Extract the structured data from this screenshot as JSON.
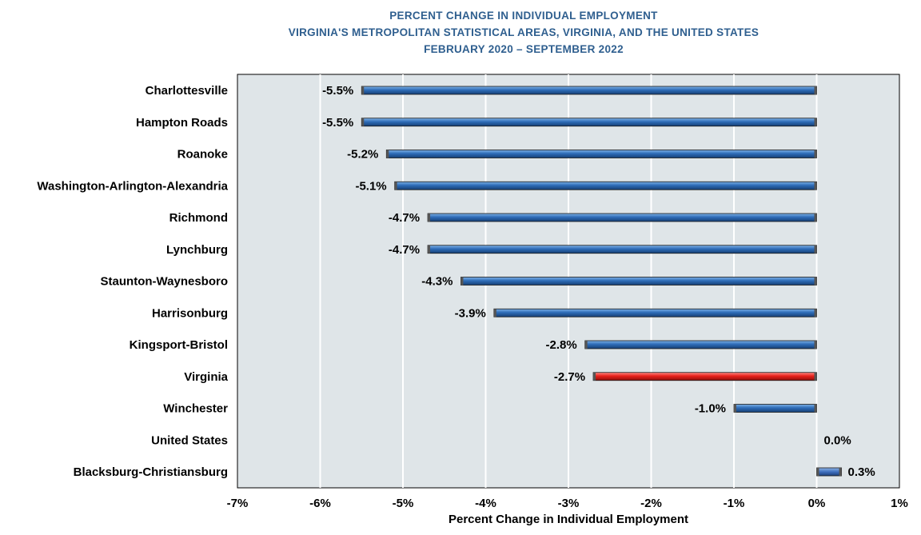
{
  "chart_data": {
    "type": "bar",
    "orientation": "horizontal",
    "title": [
      "PERCENT CHANGE IN INDIVIDUAL EMPLOYMENT",
      "VIRGINIA'S METROPOLITAN STATISTICAL AREAS, VIRGINIA, AND THE UNITED STATES",
      "FEBRUARY 2020 – SEPTEMBER 2022"
    ],
    "xlabel": "Percent Change in Individual Employment",
    "ylabel": "",
    "xlim": [
      -7,
      1
    ],
    "x_ticks": [
      -7,
      -6,
      -5,
      -4,
      -3,
      -2,
      -1,
      0,
      1
    ],
    "x_tick_labels": [
      "-7%",
      "-6%",
      "-5%",
      "-4%",
      "-3%",
      "-2%",
      "-1%",
      "0%",
      "1%"
    ],
    "grid": "vertical",
    "categories": [
      "Charlottesville",
      "Hampton Roads",
      "Roanoke",
      "Washington-Arlington-Alexandria",
      "Richmond",
      "Lynchburg",
      "Staunton-Waynesboro",
      "Harrisonburg",
      "Kingsport-Bristol",
      "Virginia",
      "Winchester",
      "United States",
      "Blacksburg-Christiansburg"
    ],
    "values": [
      -5.5,
      -5.5,
      -5.2,
      -5.1,
      -4.7,
      -4.7,
      -4.3,
      -3.9,
      -2.8,
      -2.7,
      -1.0,
      0.0,
      0.3
    ],
    "value_labels": [
      "-5.5%",
      "-5.5%",
      "-5.2%",
      "-5.1%",
      "-4.7%",
      "-4.7%",
      "-4.3%",
      "-3.9%",
      "-2.8%",
      "-2.7%",
      "-1.0%",
      "0.0%",
      "0.3%"
    ],
    "colors": {
      "default": "#2e6cb8",
      "highlight": "#e8211b",
      "plot_background": "#dfe5e8",
      "grid": "#ffffff",
      "title": "#2f5f8f"
    },
    "highlight_category": "Virginia"
  }
}
